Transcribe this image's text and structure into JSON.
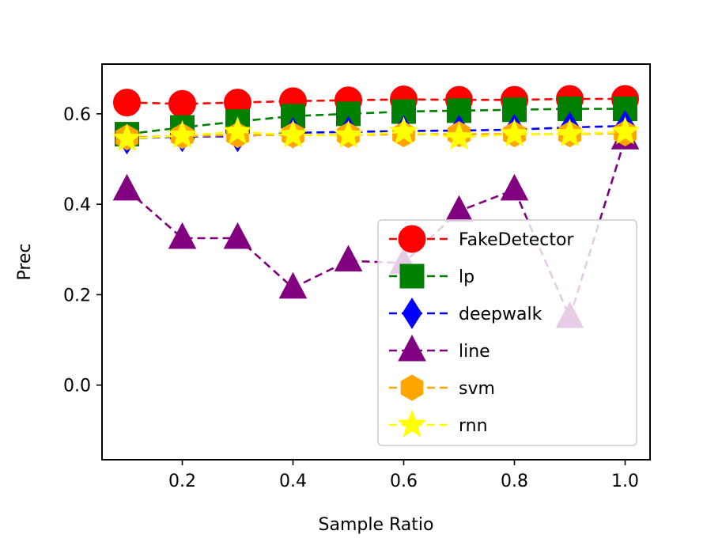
{
  "chart_data": {
    "type": "line",
    "title": "",
    "xlabel": "Sample Ratio",
    "ylabel": "Prec",
    "xlim": [
      0.055,
      1.045
    ],
    "ylim": [
      -0.165,
      0.71
    ],
    "xticks": [
      0.2,
      0.4,
      0.6,
      0.8,
      1.0
    ],
    "yticks": [
      0.0,
      0.2,
      0.4,
      0.6
    ],
    "grid": false,
    "legend_position": "lower-right",
    "x": [
      0.1,
      0.2,
      0.3,
      0.4,
      0.5,
      0.6,
      0.7,
      0.8,
      0.9,
      1.0
    ],
    "series": [
      {
        "name": "FakeDetector",
        "color": "#ff0000",
        "marker": "circle",
        "values": [
          0.625,
          0.622,
          0.625,
          0.628,
          0.63,
          0.632,
          0.631,
          0.631,
          0.633,
          0.633
        ]
      },
      {
        "name": "lp",
        "color": "#008000",
        "marker": "square",
        "values": [
          0.555,
          0.57,
          0.583,
          0.595,
          0.6,
          0.605,
          0.607,
          0.609,
          0.611,
          0.611
        ]
      },
      {
        "name": "deepwalk",
        "color": "#0000ff",
        "marker": "diamond",
        "values": [
          0.545,
          0.55,
          0.55,
          0.558,
          0.56,
          0.562,
          0.563,
          0.565,
          0.57,
          0.573
        ]
      },
      {
        "name": "line",
        "color": "#800080",
        "marker": "triangle",
        "values": [
          0.432,
          0.325,
          0.325,
          0.215,
          0.275,
          0.27,
          0.385,
          0.432,
          0.15,
          0.545
        ]
      },
      {
        "name": "svm",
        "color": "#ffa500",
        "marker": "hexagon",
        "values": [
          0.548,
          0.551,
          0.553,
          0.553,
          0.553,
          0.555,
          0.555,
          0.555,
          0.555,
          0.557
        ]
      },
      {
        "name": "rnn",
        "color": "#ffff00",
        "marker": "star",
        "values": [
          0.545,
          0.552,
          0.56,
          0.553,
          0.552,
          0.56,
          0.548,
          0.555,
          0.555,
          0.56
        ]
      }
    ]
  }
}
